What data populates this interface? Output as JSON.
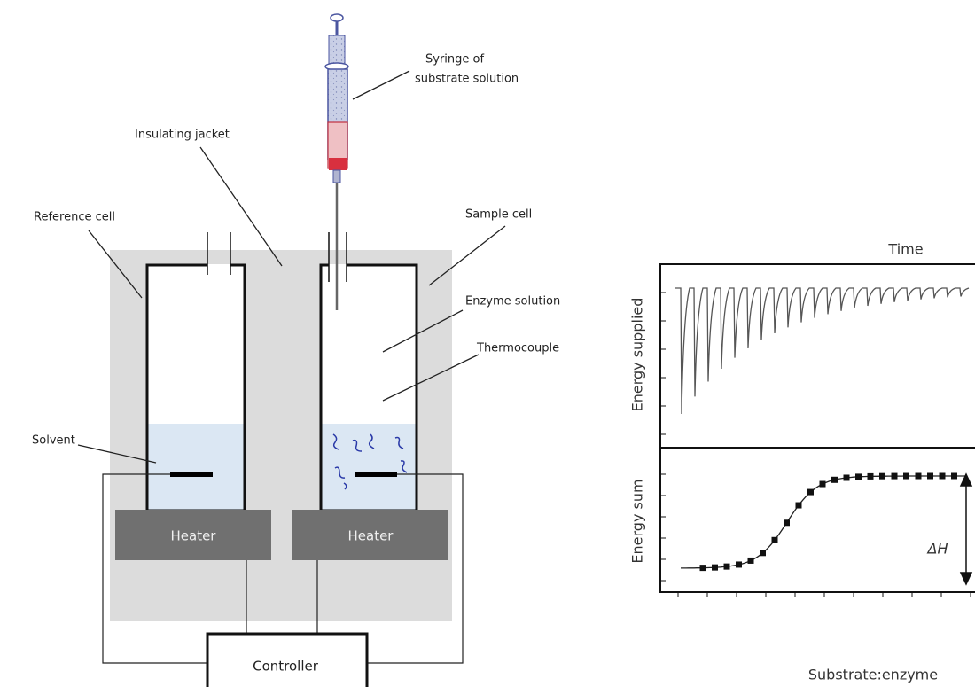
{
  "labels": {
    "syringe": [
      "Syringe of",
      "substrate solution"
    ],
    "insulating_jacket": "Insulating jacket",
    "reference_cell": "Reference cell",
    "sample_cell": "Sample cell",
    "enzyme_solution": "Enzyme solution",
    "thermocouple": "Thermocouple",
    "solvent": "Solvent",
    "heaters": [
      "Heater",
      "Heater"
    ],
    "controller": "Controller"
  },
  "plots": {
    "top_axis_label": "Time",
    "top_y_label": "Energy supplied",
    "bottom_y_label": "Energy sum",
    "delta_h": "ΔH",
    "bottom_x_label": "Substrate:enzyme"
  }
}
